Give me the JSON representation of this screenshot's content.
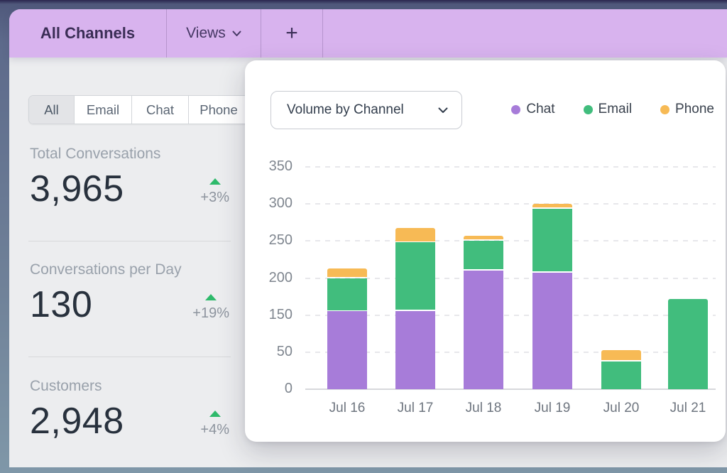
{
  "topbar": {
    "tab_label": "All Channels",
    "views_label": "Views",
    "add_label": "+"
  },
  "filters": {
    "segments": [
      {
        "label": "All",
        "active": true
      },
      {
        "label": "Email",
        "active": false
      },
      {
        "label": "Chat",
        "active": false
      },
      {
        "label": "Phone",
        "active": false
      }
    ]
  },
  "metrics": [
    {
      "label": "Total Conversations",
      "value": "3,965",
      "delta": "+3%",
      "trend": "up"
    },
    {
      "label": "Conversations per Day",
      "value": "130",
      "delta": "+19%",
      "trend": "up"
    },
    {
      "label": "Customers",
      "value": "2,948",
      "delta": "+4%",
      "trend": "up"
    }
  ],
  "chart_card": {
    "selector_label": "Volume by Channel",
    "legend": [
      {
        "label": "Chat",
        "color": "#a77cd9"
      },
      {
        "label": "Email",
        "color": "#41bd7d"
      },
      {
        "label": "Phone",
        "color": "#f7ba55"
      }
    ]
  },
  "chart_data": {
    "type": "bar",
    "stacked": true,
    "title": "Volume by Channel",
    "categories": [
      "Jul 16",
      "Jul 17",
      "Jul 18",
      "Jul 19",
      "Jul 20",
      "Jul 21"
    ],
    "series": [
      {
        "name": "Chat",
        "color": "#a77cd9",
        "values": [
          155,
          155,
          210,
          207,
          0,
          0
        ]
      },
      {
        "name": "Email",
        "color": "#41bd7d",
        "values": [
          45,
          93,
          40,
          86,
          37,
          172
        ]
      },
      {
        "name": "Phone",
        "color": "#f7ba55",
        "values": [
          13,
          20,
          7,
          7,
          18,
          0
        ]
      }
    ],
    "totals": [
      213,
      268,
      257,
      300,
      55,
      172
    ],
    "xlabel": "",
    "ylabel": "",
    "y_tick_labels_top_to_bottom": [
      "350",
      "300",
      "250",
      "200",
      "150",
      "50",
      "0"
    ],
    "grid": "dashed-horizontal",
    "legend_position": "top-right"
  },
  "icons": {
    "chevron_down": "v",
    "plus": "+",
    "trend_up": "triangle-up"
  },
  "colors": {
    "topbar_bg": "#d8b3ee",
    "topbar_text": "#3a2d55",
    "panel_bg": "#ecedef",
    "card_bg": "#ffffff",
    "trend_up": "#2eba6b",
    "frame": "#5d6a8b"
  }
}
